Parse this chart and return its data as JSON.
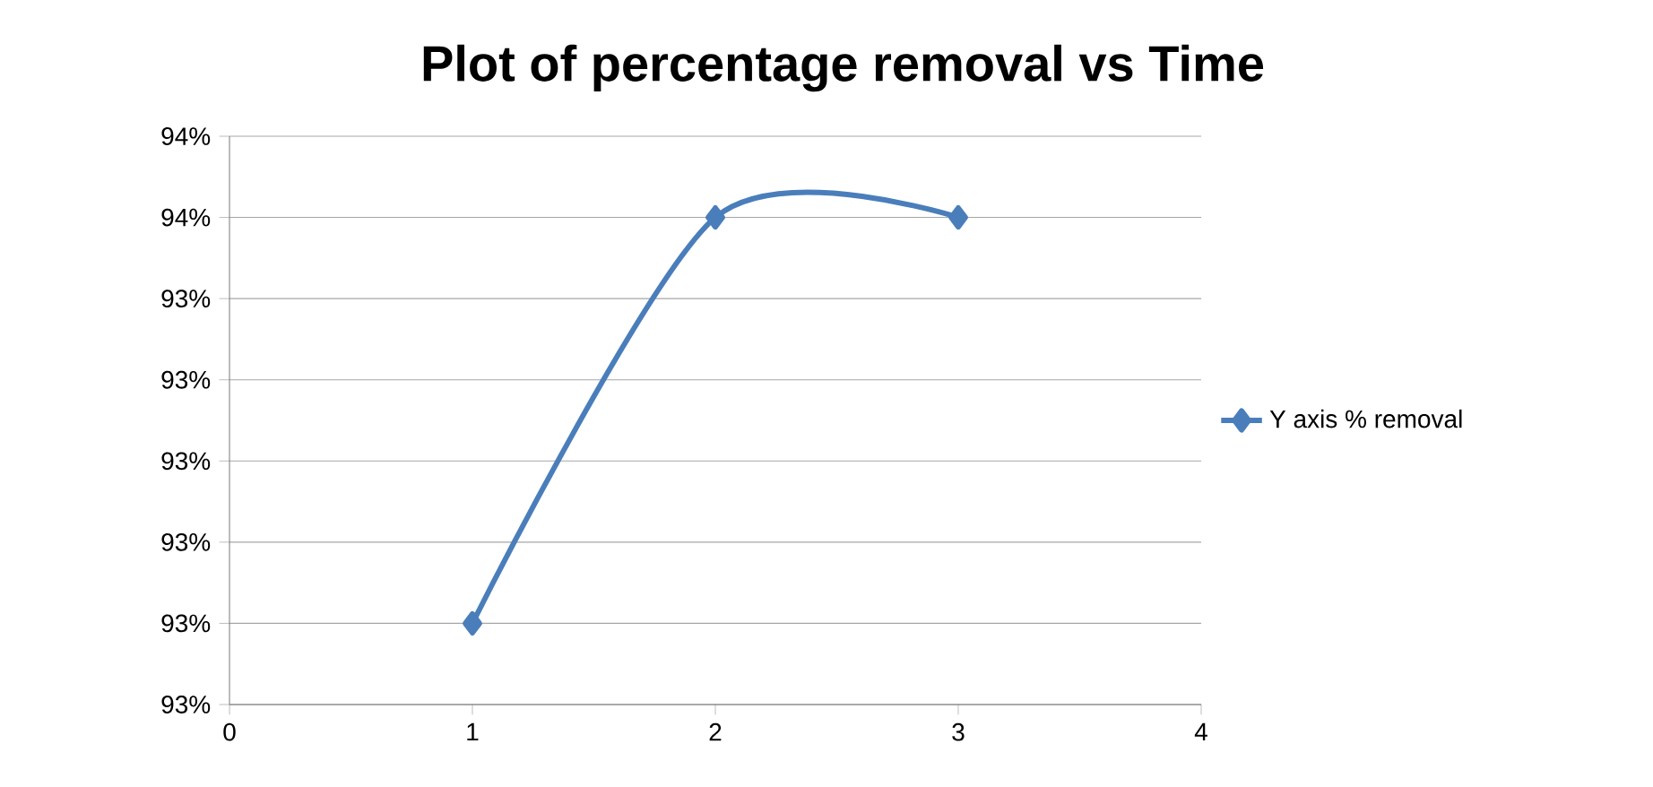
{
  "chart_data": {
    "type": "line",
    "title": "Plot of percentage removal vs Time",
    "x": [
      1,
      2,
      3
    ],
    "series": [
      {
        "name": "Y axis % removal",
        "color": "#4a7ebb",
        "values": [
          93.0,
          93.5,
          93.5
        ]
      }
    ],
    "xlim": [
      0,
      4
    ],
    "xticks": [
      0,
      1,
      2,
      3,
      4
    ],
    "ylim": [
      92.9,
      93.6
    ],
    "yticks": [
      {
        "value": 92.9,
        "label": "93%"
      },
      {
        "value": 93.0,
        "label": "93%"
      },
      {
        "value": 93.1,
        "label": "93%"
      },
      {
        "value": 93.2,
        "label": "93%"
      },
      {
        "value": 93.3,
        "label": "93%"
      },
      {
        "value": 93.4,
        "label": "93%"
      },
      {
        "value": 93.5,
        "label": "94%"
      },
      {
        "value": 93.6,
        "label": "94%"
      }
    ],
    "grid": "y",
    "legend": "right",
    "marker": "diamond",
    "line_style": "solid"
  }
}
